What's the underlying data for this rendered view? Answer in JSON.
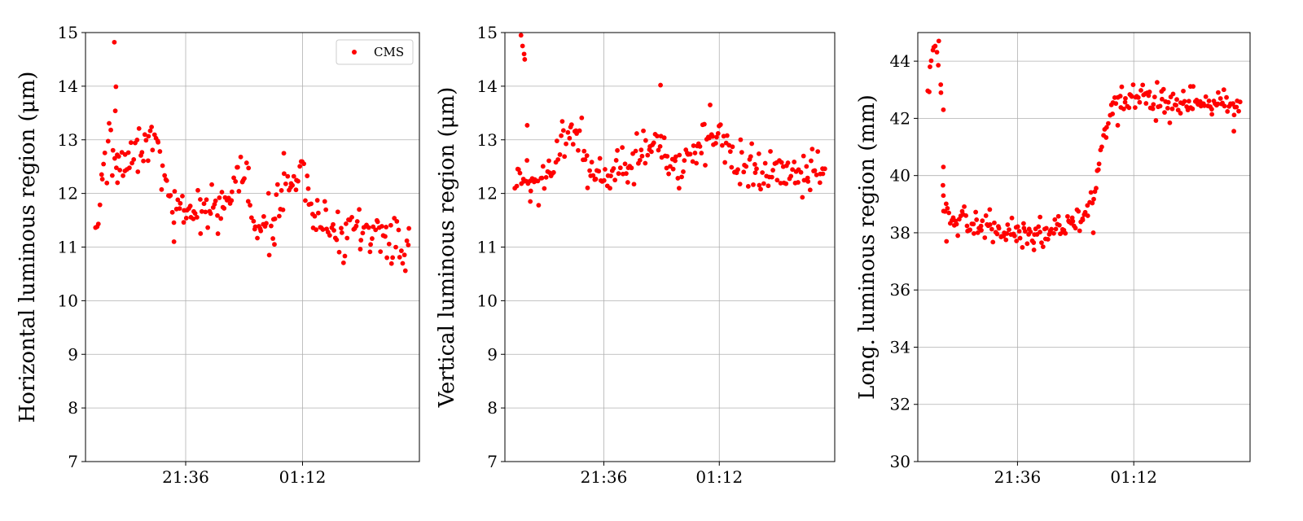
{
  "chart_data": [
    {
      "type": "scatter",
      "title": "",
      "xlabel": "",
      "ylabel": "Horizontal luminous region (μm)",
      "x_ticks": [
        "21:36",
        "01:12"
      ],
      "y_ticks": [
        "7",
        "8",
        "9",
        "10",
        "11",
        "12",
        "13",
        "14",
        "15"
      ],
      "ylim": [
        7,
        15
      ],
      "grid": true,
      "legend": {
        "placement": "top-right",
        "entries": [
          "CMS"
        ]
      },
      "series": [
        {
          "name": "CMS",
          "color": "#ff0000",
          "trend": [
            [
              0.0,
              11.08
            ],
            [
              0.04,
              13.0
            ],
            [
              0.06,
              12.65
            ],
            [
              0.1,
              12.7
            ],
            [
              0.14,
              12.9
            ],
            [
              0.2,
              12.9
            ],
            [
              0.24,
              11.75
            ],
            [
              0.28,
              11.4
            ],
            [
              0.33,
              11.6
            ],
            [
              0.37,
              11.8
            ],
            [
              0.41,
              11.75
            ],
            [
              0.45,
              12.2
            ],
            [
              0.48,
              12.5
            ],
            [
              0.5,
              11.4
            ],
            [
              0.54,
              11.35
            ],
            [
              0.6,
              12.0
            ],
            [
              0.63,
              12.3
            ],
            [
              0.66,
              12.5
            ],
            [
              0.69,
              11.4
            ],
            [
              0.75,
              11.3
            ],
            [
              0.82,
              11.3
            ],
            [
              0.9,
              11.2
            ],
            [
              1.0,
              11.0
            ]
          ],
          "noise": 0.22,
          "outliers": [
            [
              0.06,
              14.82
            ],
            [
              0.065,
              13.99
            ],
            [
              0.063,
              13.54
            ],
            [
              0.07,
              12.2
            ],
            [
              0.25,
              11.1
            ],
            [
              0.39,
              11.25
            ],
            [
              0.6,
              12.75
            ],
            [
              0.57,
              11.05
            ]
          ],
          "n": 230
        }
      ]
    },
    {
      "type": "scatter",
      "title": "",
      "xlabel": "",
      "ylabel": "Vertical luminous region (μm)",
      "x_ticks": [
        "21:36",
        "01:12"
      ],
      "y_ticks": [
        "7",
        "8",
        "9",
        "10",
        "11",
        "12",
        "13",
        "14",
        "15"
      ],
      "ylim": [
        7,
        15
      ],
      "grid": true,
      "series": [
        {
          "name": "CMS",
          "color": "#ff0000",
          "trend": [
            [
              0.0,
              12.15
            ],
            [
              0.03,
              12.4
            ],
            [
              0.07,
              12.2
            ],
            [
              0.12,
              12.6
            ],
            [
              0.16,
              13.0
            ],
            [
              0.2,
              13.3
            ],
            [
              0.23,
              12.6
            ],
            [
              0.28,
              12.3
            ],
            [
              0.32,
              12.3
            ],
            [
              0.36,
              12.6
            ],
            [
              0.41,
              12.8
            ],
            [
              0.46,
              13.2
            ],
            [
              0.48,
              12.6
            ],
            [
              0.53,
              12.4
            ],
            [
              0.57,
              12.8
            ],
            [
              0.62,
              13.0
            ],
            [
              0.66,
              13.2
            ],
            [
              0.7,
              12.6
            ],
            [
              0.78,
              12.4
            ],
            [
              0.85,
              12.3
            ],
            [
              0.92,
              12.4
            ],
            [
              1.0,
              12.45
            ]
          ],
          "noise": 0.2,
          "outliers": [
            [
              0.02,
              14.95
            ],
            [
              0.03,
              14.6
            ],
            [
              0.032,
              14.5
            ],
            [
              0.025,
              14.75
            ],
            [
              0.04,
              13.27
            ],
            [
              0.47,
              14.02
            ],
            [
              0.63,
              13.65
            ],
            [
              0.05,
              11.85
            ]
          ],
          "n": 230
        }
      ]
    },
    {
      "type": "scatter",
      "title": "",
      "xlabel": "",
      "ylabel": "Long. luminous region (mm)",
      "x_ticks": [
        "21:36",
        "01:12"
      ],
      "y_ticks": [
        "30",
        "32",
        "34",
        "36",
        "38",
        "40",
        "42",
        "44"
      ],
      "ylim": [
        30,
        45
      ],
      "grid": true,
      "series": [
        {
          "name": "CMS",
          "color": "#ff0000",
          "trend": [
            [
              0.0,
              42.6
            ],
            [
              0.01,
              43.8
            ],
            [
              0.025,
              44.3
            ],
            [
              0.04,
              44.4
            ],
            [
              0.05,
              38.8
            ],
            [
              0.08,
              38.4
            ],
            [
              0.15,
              38.4
            ],
            [
              0.22,
              38.2
            ],
            [
              0.3,
              38.0
            ],
            [
              0.38,
              38.0
            ],
            [
              0.45,
              38.3
            ],
            [
              0.5,
              38.5
            ],
            [
              0.53,
              38.9
            ],
            [
              0.55,
              40.5
            ],
            [
              0.58,
              42.4
            ],
            [
              0.62,
              42.6
            ],
            [
              0.7,
              42.6
            ],
            [
              0.78,
              42.5
            ],
            [
              0.86,
              42.5
            ],
            [
              0.94,
              42.5
            ],
            [
              1.0,
              42.3
            ]
          ],
          "noise": 0.25,
          "outliers": [
            [
              0.05,
              42.3
            ],
            [
              0.05,
              40.3
            ],
            [
              0.05,
              39.3
            ],
            [
              0.06,
              37.7
            ],
            [
              0.34,
              37.4
            ],
            [
              0.98,
              41.55
            ],
            [
              0.53,
              38.0
            ]
          ],
          "n": 250
        }
      ]
    }
  ]
}
